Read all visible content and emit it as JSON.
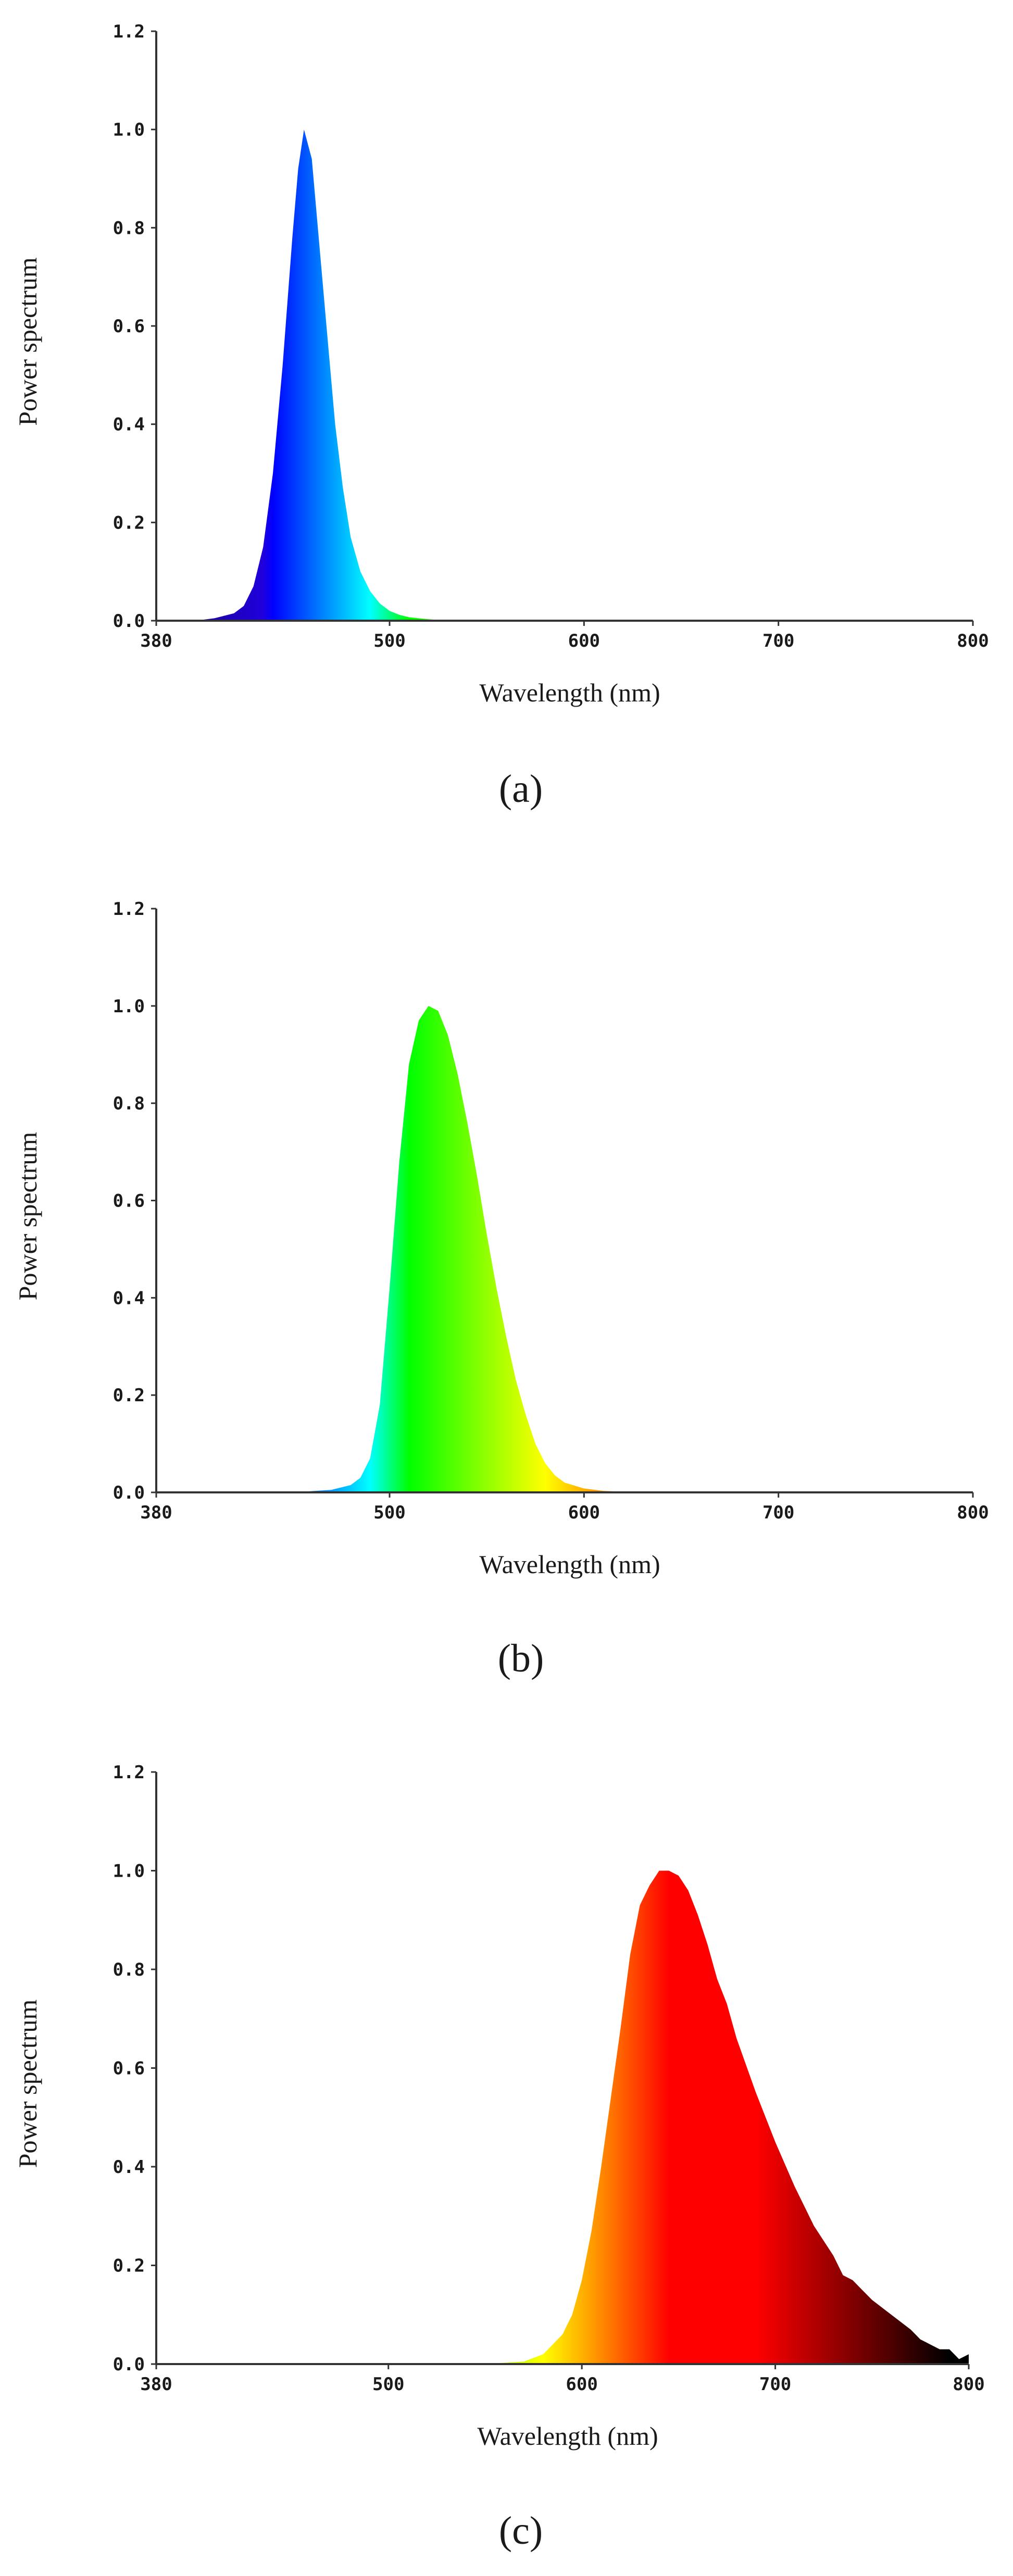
{
  "figure": {
    "panels": [
      "(a)",
      "(b)",
      "(c)"
    ]
  },
  "chart_data": [
    {
      "type": "area",
      "panel_label": "(a)",
      "xlabel": "Wavelength (nm)",
      "ylabel": "Power spectrum",
      "xlim": [
        380,
        800
      ],
      "ylim": [
        0,
        1.2
      ],
      "x_tick_labels": [
        "380",
        "500",
        "600",
        "700",
        "800"
      ],
      "x_ticks": [
        380,
        500,
        600,
        700,
        800
      ],
      "y_tick_labels": [
        "0.0",
        "0.2",
        "0.4",
        "0.6",
        "0.8",
        "1.0",
        "1.2"
      ],
      "y_ticks": [
        0,
        0.2,
        0.4,
        0.6,
        0.8,
        1.0,
        1.2
      ],
      "fill": "spectral color gradient (wavelength-mapped)",
      "series": [
        {
          "x": [
            380,
            400,
            410,
            420,
            425,
            430,
            435,
            440,
            445,
            450,
            453,
            456,
            460,
            464,
            468,
            472,
            476,
            480,
            485,
            490,
            495,
            500,
            505,
            510,
            520,
            530,
            550,
            600,
            650,
            700,
            750,
            800
          ],
          "values": [
            0.0,
            0.0,
            0.005,
            0.015,
            0.03,
            0.07,
            0.15,
            0.3,
            0.52,
            0.78,
            0.92,
            1.0,
            0.94,
            0.76,
            0.58,
            0.4,
            0.27,
            0.17,
            0.1,
            0.06,
            0.035,
            0.02,
            0.012,
            0.007,
            0.003,
            0.0,
            0.0,
            0.0,
            0.0,
            0.0,
            0.0,
            0.0
          ]
        }
      ]
    },
    {
      "type": "area",
      "panel_label": "(b)",
      "xlabel": "Wavelength (nm)",
      "ylabel": "Power spectrum",
      "xlim": [
        380,
        800
      ],
      "ylim": [
        0,
        1.2
      ],
      "x_tick_labels": [
        "380",
        "500",
        "600",
        "700",
        "800"
      ],
      "x_ticks": [
        380,
        500,
        600,
        700,
        800
      ],
      "y_tick_labels": [
        "0.0",
        "0.2",
        "0.4",
        "0.6",
        "0.8",
        "1.0",
        "1.2"
      ],
      "y_ticks": [
        0,
        0.2,
        0.4,
        0.6,
        0.8,
        1.0,
        1.2
      ],
      "fill": "spectral color gradient (wavelength-mapped)",
      "series": [
        {
          "x": [
            380,
            450,
            470,
            480,
            485,
            490,
            495,
            500,
            505,
            510,
            515,
            520,
            525,
            530,
            535,
            540,
            545,
            550,
            555,
            560,
            565,
            570,
            575,
            580,
            585,
            590,
            600,
            610,
            630,
            700,
            750,
            800
          ],
          "values": [
            0.0,
            0.0,
            0.005,
            0.015,
            0.03,
            0.07,
            0.18,
            0.42,
            0.68,
            0.88,
            0.97,
            1.0,
            0.99,
            0.94,
            0.86,
            0.76,
            0.65,
            0.53,
            0.42,
            0.32,
            0.23,
            0.16,
            0.1,
            0.06,
            0.035,
            0.02,
            0.008,
            0.003,
            0.0,
            0.0,
            0.0,
            0.0
          ]
        }
      ]
    },
    {
      "type": "area",
      "panel_label": "(c)",
      "xlabel": "Wavelength (nm)",
      "ylabel": "Power spectrum",
      "xlim": [
        380,
        800
      ],
      "ylim": [
        0,
        1.2
      ],
      "x_tick_labels": [
        "380",
        "500",
        "600",
        "700",
        "800"
      ],
      "x_ticks": [
        380,
        500,
        600,
        700,
        800
      ],
      "y_tick_labels": [
        "0.0",
        "0.2",
        "0.4",
        "0.6",
        "0.8",
        "1.0",
        "1.2"
      ],
      "y_ticks": [
        0,
        0.2,
        0.4,
        0.6,
        0.8,
        1.0,
        1.2
      ],
      "fill": "spectral color gradient (wavelength-mapped)",
      "series": [
        {
          "x": [
            380,
            550,
            570,
            580,
            590,
            595,
            600,
            605,
            610,
            615,
            620,
            625,
            630,
            635,
            640,
            645,
            650,
            655,
            660,
            665,
            670,
            675,
            680,
            690,
            700,
            710,
            720,
            725,
            730,
            735,
            740,
            745,
            750,
            760,
            770,
            775,
            780,
            785,
            790,
            795,
            800
          ],
          "values": [
            0.0,
            0.0,
            0.005,
            0.02,
            0.06,
            0.1,
            0.17,
            0.27,
            0.4,
            0.54,
            0.68,
            0.83,
            0.93,
            0.97,
            1.0,
            1.0,
            0.99,
            0.96,
            0.91,
            0.85,
            0.78,
            0.73,
            0.66,
            0.55,
            0.45,
            0.36,
            0.28,
            0.25,
            0.22,
            0.18,
            0.17,
            0.15,
            0.13,
            0.1,
            0.07,
            0.05,
            0.04,
            0.03,
            0.03,
            0.01,
            0.02
          ]
        }
      ]
    }
  ]
}
